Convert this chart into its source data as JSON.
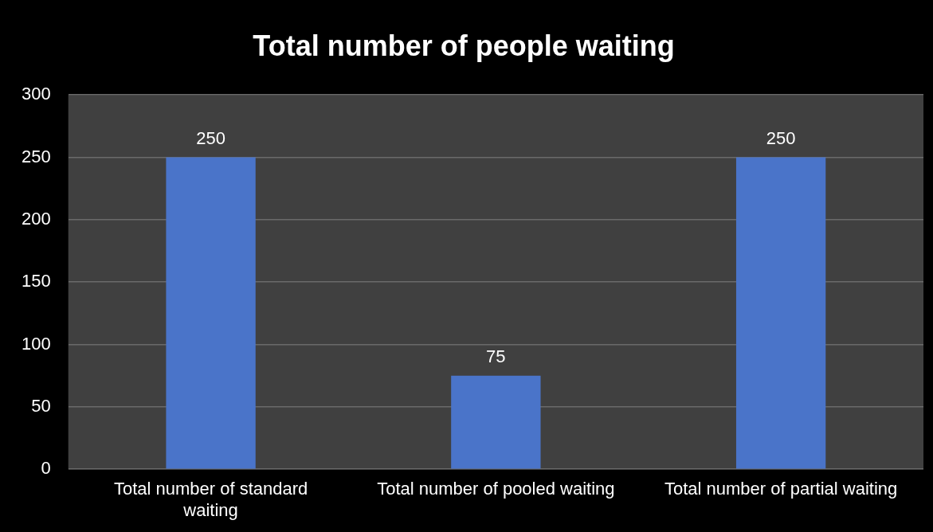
{
  "chart_data": {
    "type": "bar",
    "title": "Total number of people waiting",
    "categories": [
      "Total number of standard waiting",
      "Total number of pooled waiting",
      "Total number of partial waiting"
    ],
    "values": [
      250,
      75,
      250
    ],
    "color": "#4a74c9",
    "ylim": [
      0,
      300
    ],
    "yticks": [
      0,
      50,
      100,
      150,
      200,
      250,
      300
    ],
    "grid": "y",
    "data_labels": true
  }
}
